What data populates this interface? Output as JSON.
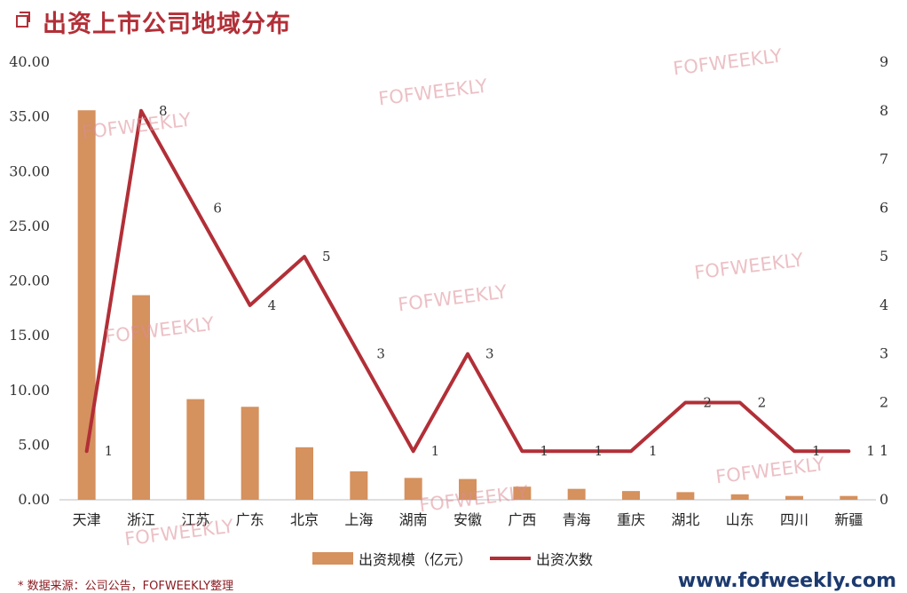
{
  "header": {
    "title": "出资上市公司地域分布"
  },
  "chart_data": {
    "type": "bar",
    "categories": [
      "天津",
      "浙江",
      "江苏",
      "广东",
      "北京",
      "上海",
      "湖南",
      "安徽",
      "广西",
      "青海",
      "重庆",
      "湖北",
      "山东",
      "四川",
      "新疆"
    ],
    "series": [
      {
        "name": "出资规模（亿元）",
        "type": "bar",
        "axis": "left",
        "color": "#d5915e",
        "values": [
          35.6,
          18.7,
          9.2,
          8.5,
          4.8,
          2.6,
          2.0,
          1.9,
          1.2,
          1.0,
          0.8,
          0.7,
          0.5,
          0.35,
          0.35
        ]
      },
      {
        "name": "出资次数",
        "type": "line",
        "axis": "right",
        "color": "#b22f37",
        "values": [
          1,
          8,
          6,
          4,
          5,
          3,
          1,
          3,
          1,
          1,
          1,
          2,
          2,
          1,
          1
        ]
      }
    ],
    "y_left": {
      "ylim": [
        0,
        40
      ],
      "ticks": [
        "0.00",
        "5.00",
        "10.00",
        "15.00",
        "20.00",
        "25.00",
        "30.00",
        "35.00",
        "40.00"
      ]
    },
    "y_right": {
      "ylim": [
        0,
        9
      ],
      "ticks": [
        "0",
        "1",
        "2",
        "3",
        "4",
        "5",
        "6",
        "7",
        "8",
        "9"
      ]
    },
    "legend_position": "bottom",
    "grid": false
  },
  "watermark": "FOFWEEKLY",
  "footer": {
    "source": "* 数据来源：公司公告，FOFWEEKLY整理",
    "site": "www.fofweekly.com"
  }
}
